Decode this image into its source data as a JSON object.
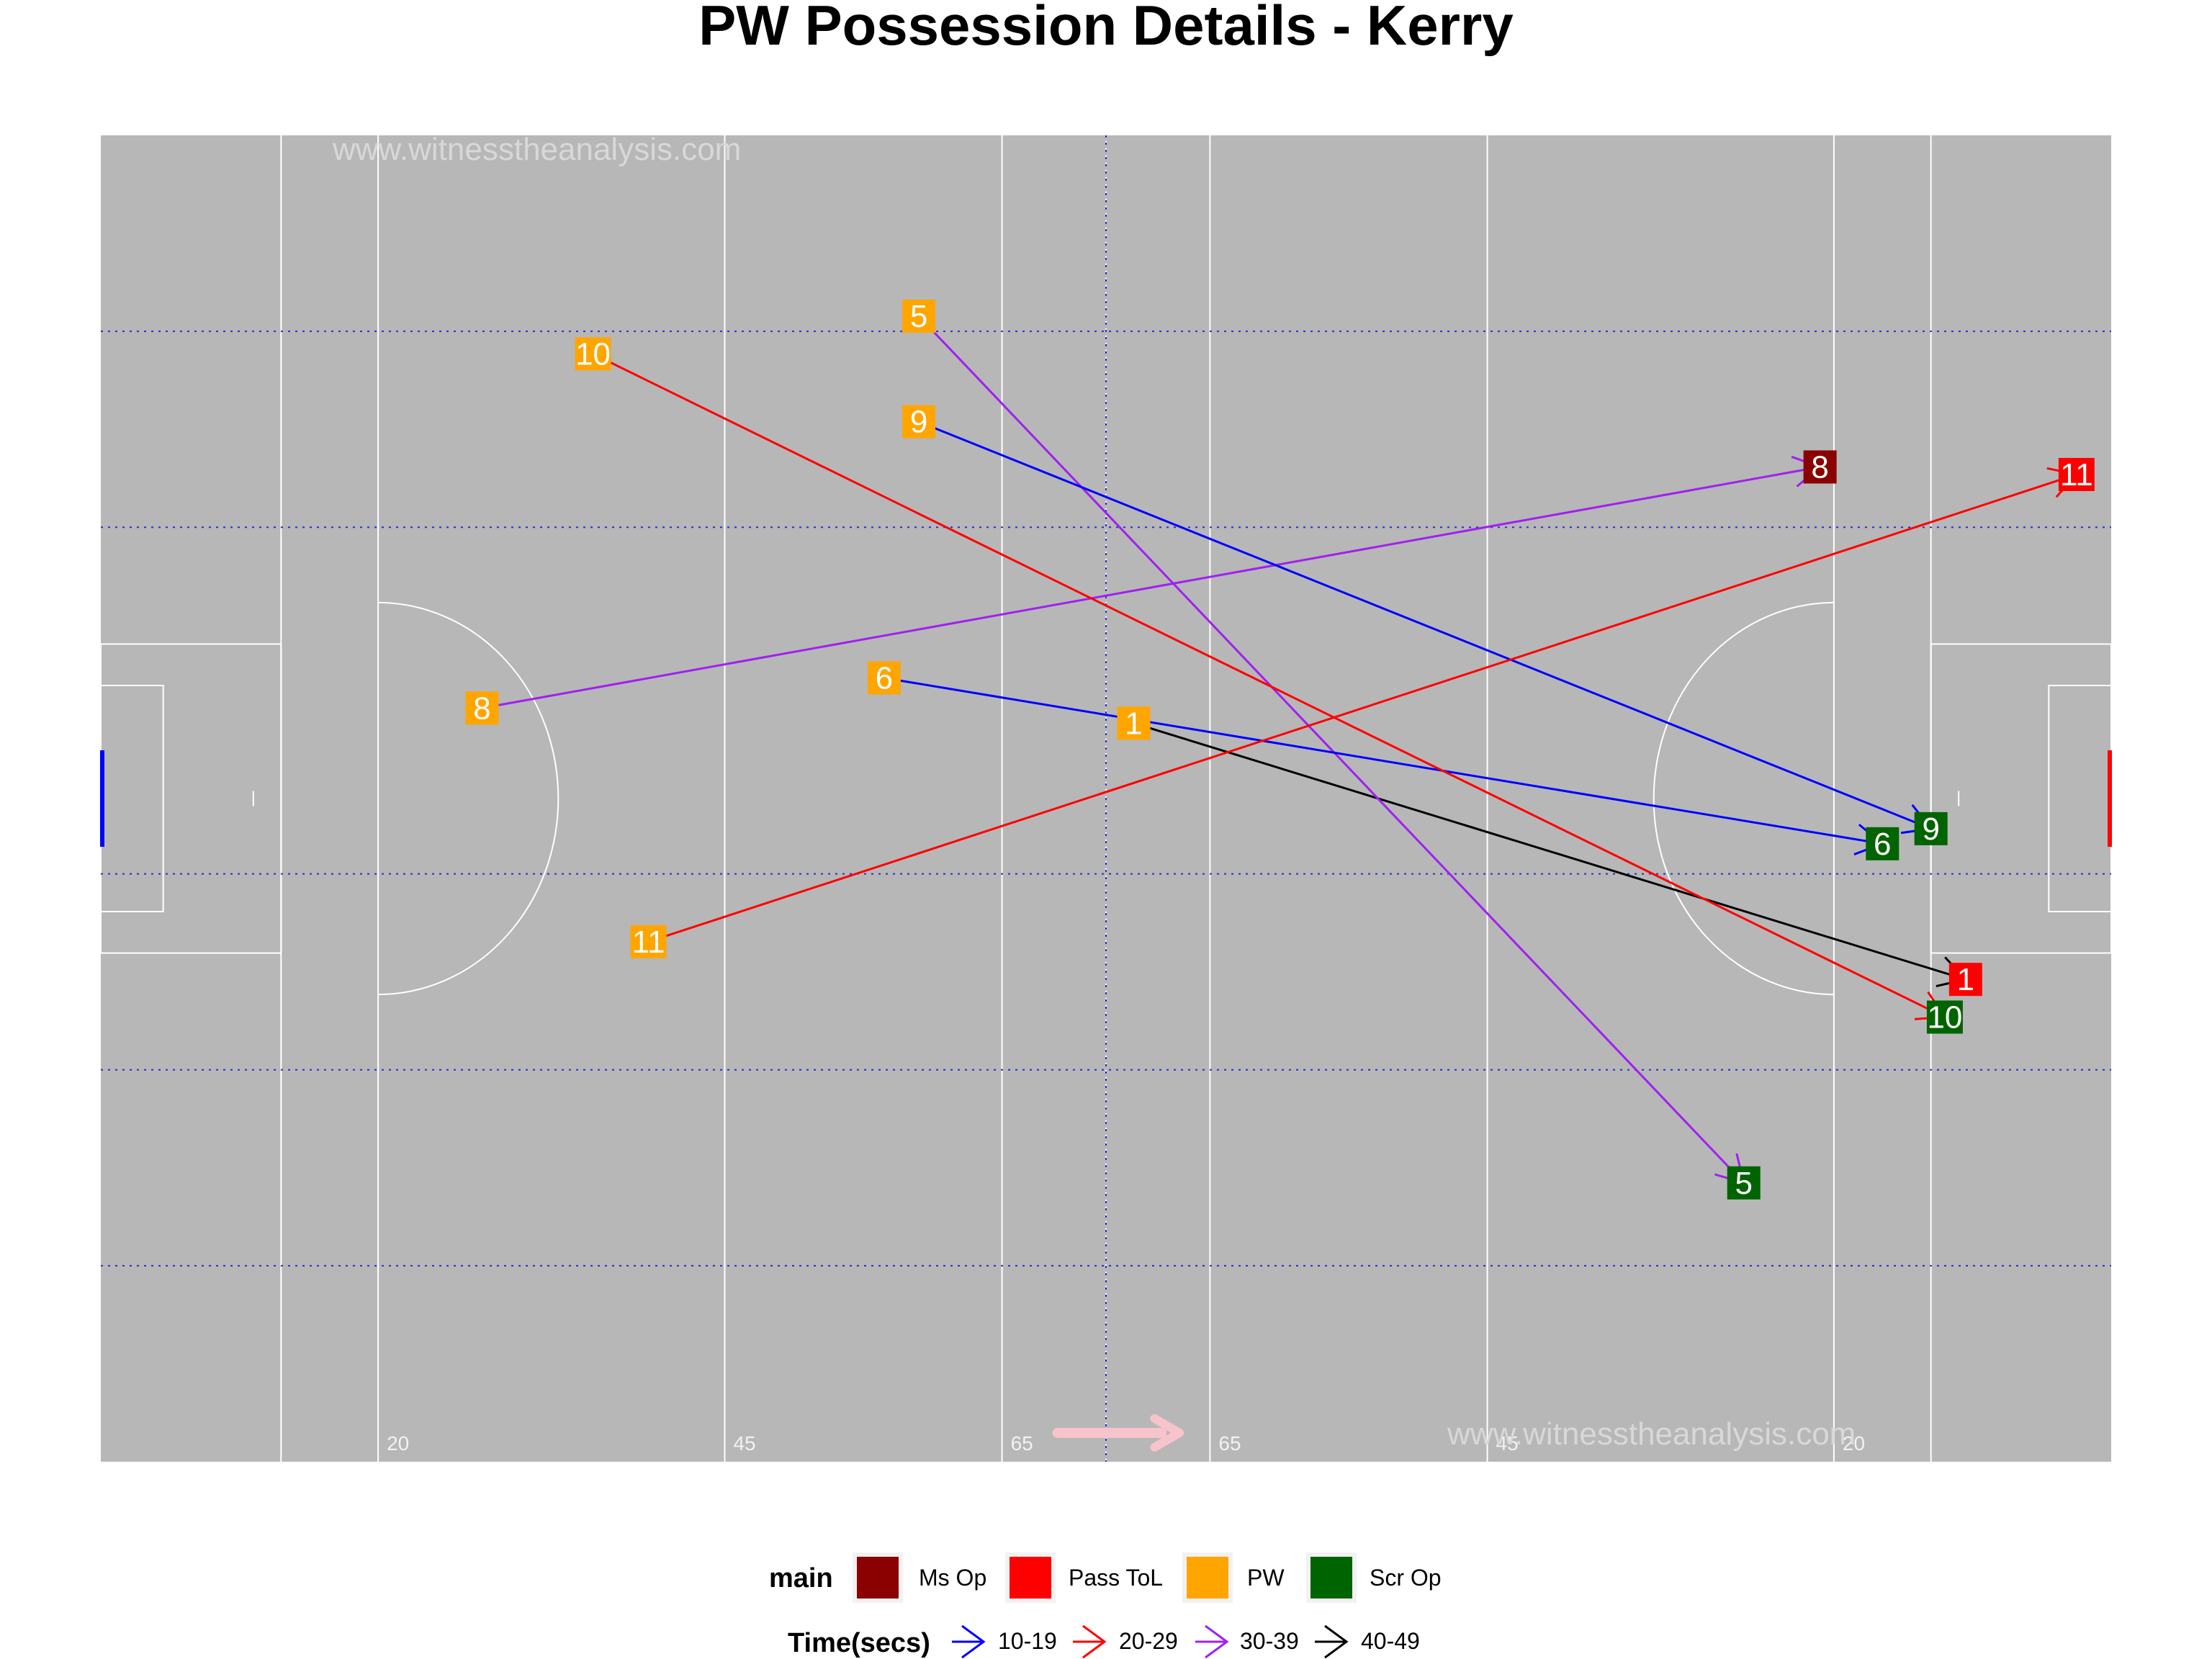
{
  "chart_data": {
    "type": "scatter",
    "title": "PW Possession Details - Kerry",
    "watermark": "www.witnesstheanalysis.com",
    "pitch": {
      "length": 145,
      "width": 88,
      "xlim": [
        0,
        145
      ],
      "ylim": [
        0,
        88
      ],
      "field_color": "#b7b7b7",
      "line_color": "#ffffff",
      "grid_color": "#2b2bd6",
      "left_goal_color": "#0000ff",
      "right_goal_color": "#ff0000",
      "direction_arrow_color": "#f7c4cb"
    },
    "line_ticks": [
      {
        "x": 20,
        "label": "20"
      },
      {
        "x": 45,
        "label": "45"
      },
      {
        "x": 65,
        "label": "65"
      },
      {
        "x": 80,
        "label": "65"
      },
      {
        "x": 100,
        "label": "45"
      },
      {
        "x": 125,
        "label": "20"
      }
    ],
    "outcome_colors": {
      "Ms Op": "#8b0000",
      "Pass ToL": "#ff0000",
      "PW": "#ffa500",
      "Scr Op": "#006400"
    },
    "time_colors": {
      "10-19": "#0000ff",
      "20-29": "#ff0000",
      "30-39": "#a020f0",
      "40-49": "#000000"
    },
    "possessions": [
      {
        "id": "1",
        "start": [
          74.5,
          49
        ],
        "end": [
          134.5,
          32
        ],
        "outcome": "Pass ToL",
        "time": "40-49"
      },
      {
        "id": "5",
        "start": [
          59,
          76
        ],
        "end": [
          118.5,
          18.5
        ],
        "outcome": "Scr Op",
        "time": "30-39"
      },
      {
        "id": "6",
        "start": [
          56.5,
          52
        ],
        "end": [
          128.5,
          41
        ],
        "outcome": "Scr Op",
        "time": "10-19"
      },
      {
        "id": "8",
        "start": [
          27.5,
          50
        ],
        "end": [
          124,
          66
        ],
        "outcome": "Ms Op",
        "time": "30-39"
      },
      {
        "id": "9",
        "start": [
          59,
          69
        ],
        "end": [
          132,
          42
        ],
        "outcome": "Scr Op",
        "time": "10-19"
      },
      {
        "id": "10",
        "start": [
          35.5,
          73.5
        ],
        "end": [
          133,
          29.5
        ],
        "outcome": "Scr Op",
        "time": "20-29"
      },
      {
        "id": "11",
        "start": [
          39.5,
          34.5
        ],
        "end": [
          142.5,
          65.5
        ],
        "outcome": "Pass ToL",
        "time": "20-29"
      }
    ],
    "legend": {
      "placement": "bottom",
      "main_title": "main",
      "main_items": [
        "Ms Op",
        "Pass ToL",
        "PW",
        "Scr Op"
      ],
      "time_title": "Time(secs)",
      "time_items": [
        "10-19",
        "20-29",
        "30-39",
        "40-49"
      ]
    }
  }
}
